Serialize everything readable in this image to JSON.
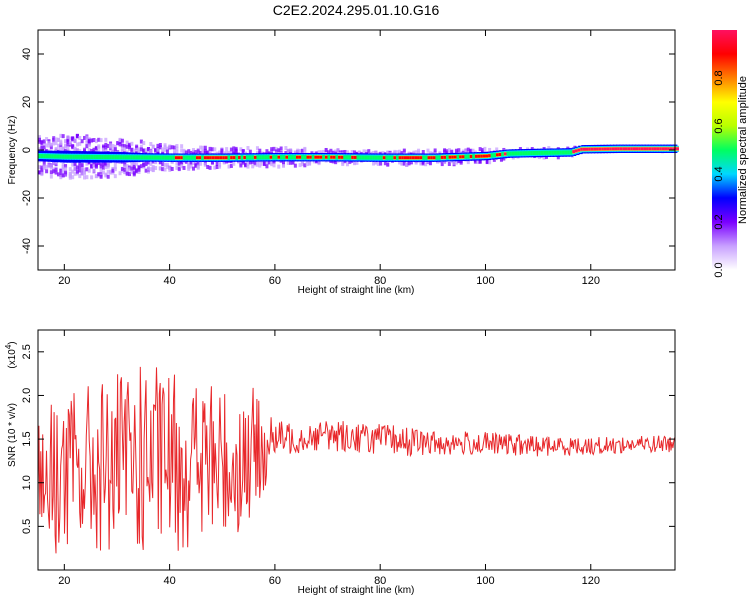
{
  "title": "C2E2.2024.295.01.10.G16",
  "chart_data": [
    {
      "type": "heatmap",
      "name": "spectrogram",
      "xlabel": "Height of straight line (km)",
      "ylabel": "Frequency (Hz)",
      "xlim": [
        15,
        136
      ],
      "ylim": [
        -50,
        50
      ],
      "xticks": [
        20,
        40,
        60,
        80,
        100,
        120
      ],
      "yticks": [
        -40,
        -20,
        0,
        20,
        40
      ],
      "ridge": {
        "x": [
          15,
          20,
          30,
          40,
          50,
          60,
          70,
          80,
          90,
          100,
          104,
          110,
          116,
          118,
          125,
          135
        ],
        "freq": [
          -2.5,
          -2.8,
          -3.0,
          -3.2,
          -3.2,
          -3.0,
          -3.0,
          -3.2,
          -3.2,
          -2.5,
          -1.5,
          -1.2,
          -1.0,
          0.3,
          0.5,
          0.5
        ],
        "noise_width_hz": [
          8,
          9,
          8,
          5,
          4,
          4,
          3,
          3,
          3,
          3,
          2,
          2,
          2,
          1,
          1,
          1
        ]
      },
      "colorbar": {
        "label": "Normalized spectral amplitude",
        "range": [
          0,
          1
        ],
        "ticks": [
          0.0,
          0.2,
          0.4,
          0.6,
          0.8
        ],
        "colormap": [
          "#ffffff",
          "#c8a0ff",
          "#7a00ff",
          "#0000ff",
          "#00d8ff",
          "#00ff60",
          "#b8ff00",
          "#ffff00",
          "#ff8000",
          "#ff0000",
          "#ff1060"
        ]
      }
    },
    {
      "type": "line",
      "name": "snr",
      "xlabel": "Height of straight line (km)",
      "ylabel": "SNR (10 * v/v)",
      "yscale_label": "(x10",
      "yscale_exp": "4",
      "xlim": [
        15,
        136
      ],
      "ylim": [
        0,
        2.75
      ],
      "xticks": [
        20,
        40,
        60,
        80,
        100,
        120
      ],
      "yticks": [
        0.5,
        1.0,
        1.5,
        2.0,
        2.5
      ],
      "color": "#e8282b",
      "envelope": {
        "x": [
          15,
          25,
          35,
          45,
          52,
          56,
          60,
          70,
          80,
          90,
          100,
          110,
          120,
          135
        ],
        "mean": [
          1.05,
          1.15,
          1.25,
          1.25,
          1.2,
          1.3,
          1.5,
          1.55,
          1.5,
          1.45,
          1.45,
          1.42,
          1.42,
          1.45
        ],
        "amp": [
          0.9,
          1.0,
          1.1,
          1.0,
          0.9,
          0.8,
          0.2,
          0.18,
          0.18,
          0.15,
          0.13,
          0.12,
          0.1,
          0.1
        ]
      }
    }
  ]
}
